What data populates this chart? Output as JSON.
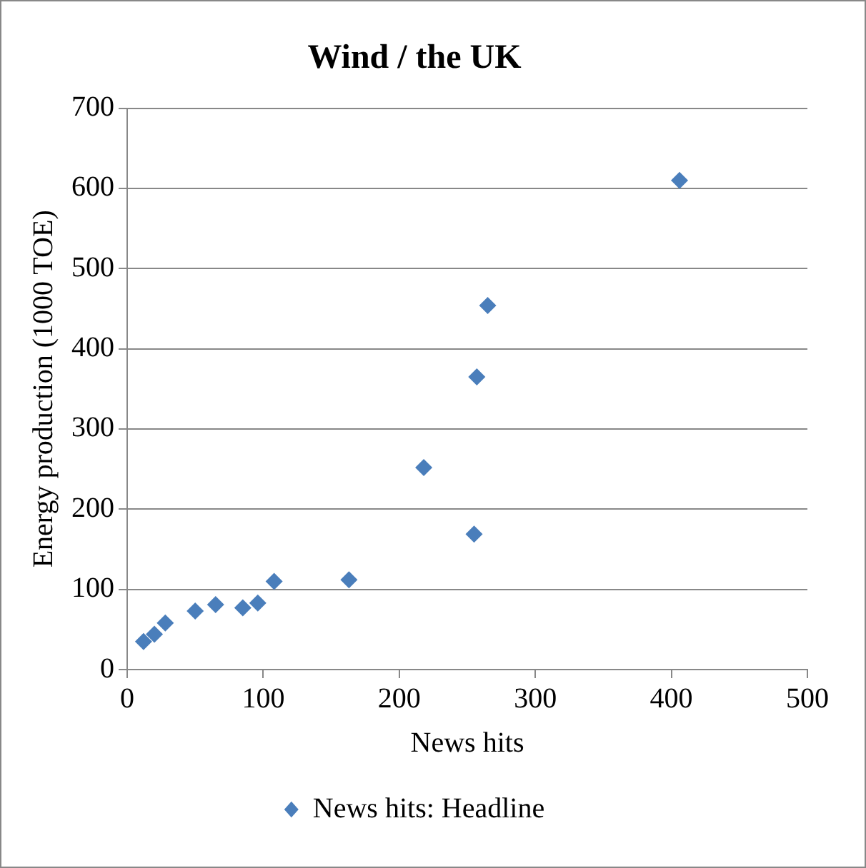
{
  "chart_data": {
    "type": "scatter",
    "title": "Wind / the UK",
    "xlabel": "News hits",
    "ylabel": "Energy production (1000 TOE)",
    "x": [
      12,
      20,
      28,
      50,
      65,
      85,
      96,
      108,
      163,
      218,
      255,
      257,
      265,
      406
    ],
    "series": [
      {
        "name": "News hits: Headline",
        "color": "#4a7ebb",
        "values": [
          35,
          44,
          58,
          73,
          81,
          77,
          83,
          110,
          112,
          252,
          169,
          365,
          454,
          610
        ]
      }
    ],
    "xlim": [
      0,
      500
    ],
    "xticks": [
      0,
      100,
      200,
      300,
      400,
      500
    ],
    "ylim": [
      0,
      700
    ],
    "yticks": [
      0,
      100,
      200,
      300,
      400,
      500,
      600,
      700
    ],
    "grid": "y",
    "legend": "bottom",
    "marker": "diamond"
  }
}
